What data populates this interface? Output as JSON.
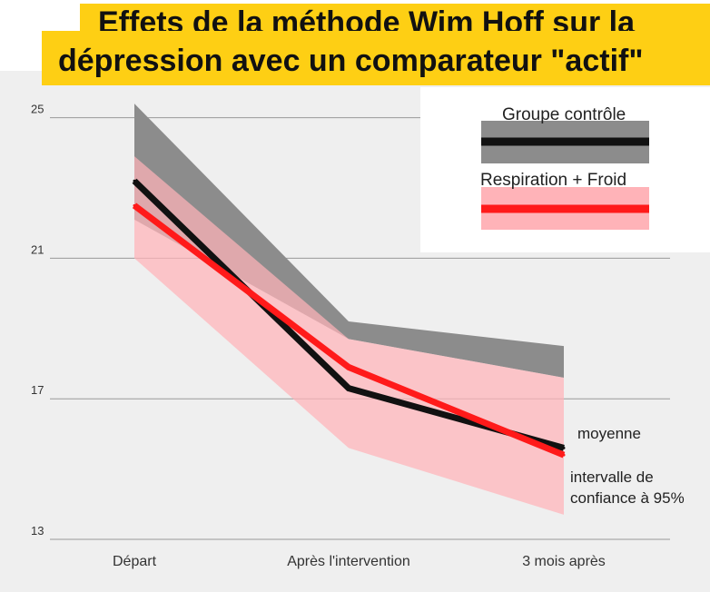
{
  "title": {
    "line1": "Effets de la méthode Wim Hoff sur la",
    "line2": "dépression avec un comparateur \"actif\""
  },
  "chart_data": {
    "type": "line",
    "categories": [
      "Départ",
      "Après l'intervention",
      "3 mois après"
    ],
    "ylim": [
      13,
      25.5
    ],
    "y_ticks": [
      "25",
      "21",
      "17",
      "13"
    ],
    "grid": true,
    "legend_position": "top-right",
    "series": [
      {
        "name": "Groupe contrôle",
        "color": "#111111",
        "band_color": "#8c8c8c",
        "values": [
          23.2,
          17.3,
          15.6
        ],
        "ci_upper": [
          25.4,
          19.2,
          18.5
        ],
        "ci_lower": [
          22.1,
          18.7,
          17.6
        ]
      },
      {
        "name": "Respiration + Froid",
        "color": "#ff1a1a",
        "band_color": "#ffb3b8",
        "values": [
          22.5,
          17.9,
          15.4
        ],
        "ci_upper": [
          23.9,
          18.7,
          17.6
        ],
        "ci_lower": [
          21.0,
          15.6,
          13.7
        ]
      }
    ],
    "annotations": {
      "mean": "moyenne",
      "ci_line1": "intervalle de",
      "ci_line2": "confiance à 95%"
    }
  }
}
